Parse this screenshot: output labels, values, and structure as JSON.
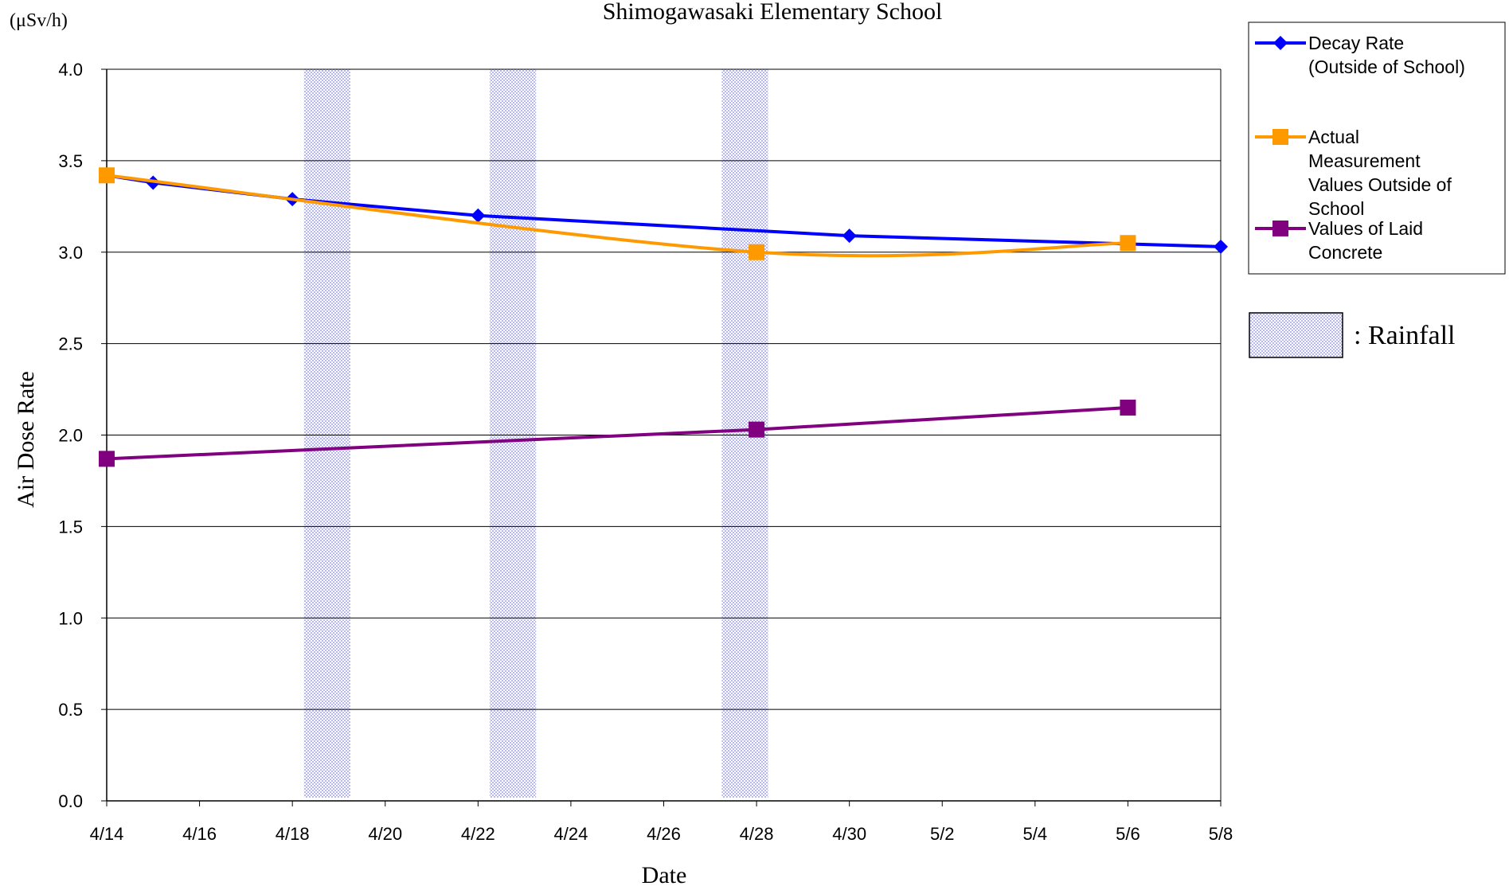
{
  "chart_data": {
    "type": "line",
    "title": "Shimogawasaki Elementary School",
    "unit_label": "(μSv/h)",
    "xlabel": "Date",
    "ylabel": "Air Dose Rate",
    "x_ticks": [
      "4/14",
      "4/16",
      "4/18",
      "4/20",
      "4/22",
      "4/24",
      "4/26",
      "4/28",
      "4/30",
      "5/2",
      "5/4",
      "5/6",
      "5/8"
    ],
    "xlim": [
      "4/14",
      "5/8"
    ],
    "y_ticks": [
      "0.0",
      "0.5",
      "1.0",
      "1.5",
      "2.0",
      "2.5",
      "3.0",
      "3.5",
      "4.0"
    ],
    "ylim": [
      0,
      4
    ],
    "grid": "horizontal",
    "legend_position": "right",
    "rainfall_periods": [
      [
        "4/18",
        "4/19"
      ],
      [
        "4/22",
        "4/23"
      ],
      [
        "4/27",
        "4/28"
      ]
    ],
    "rainfall_label": ": Rainfall",
    "rainfall_color": "#b8b8f0",
    "series": [
      {
        "name": "Decay Rate (Outside of School)",
        "color": "#0000ff",
        "marker": "diamond",
        "smooth": false,
        "points": [
          {
            "x": "4/14",
            "y": 3.42
          },
          {
            "x": "4/15",
            "y": 3.38
          },
          {
            "x": "4/18",
            "y": 3.29
          },
          {
            "x": "4/22",
            "y": 3.2
          },
          {
            "x": "4/30",
            "y": 3.09
          },
          {
            "x": "5/8",
            "y": 3.03
          }
        ]
      },
      {
        "name": "Actual Measurement Values Outside of School",
        "color": "#ff9900",
        "marker": "square",
        "smooth": true,
        "points": [
          {
            "x": "4/14",
            "y": 3.42
          },
          {
            "x": "4/28",
            "y": 3.0
          },
          {
            "x": "5/6",
            "y": 3.05
          }
        ]
      },
      {
        "name": "Values of Laid Concrete",
        "color": "#800080",
        "marker": "square",
        "smooth": false,
        "points": [
          {
            "x": "4/14",
            "y": 1.87
          },
          {
            "x": "4/28",
            "y": 2.03
          },
          {
            "x": "5/6",
            "y": 2.15
          }
        ]
      }
    ],
    "legend": [
      {
        "lines": [
          "Decay Rate",
          "(Outside of School)"
        ]
      },
      {
        "lines": [
          "Actual",
          "Measurement",
          "Values Outside of",
          "School"
        ]
      },
      {
        "lines": [
          "Values of Laid",
          "Concrete"
        ]
      }
    ]
  }
}
